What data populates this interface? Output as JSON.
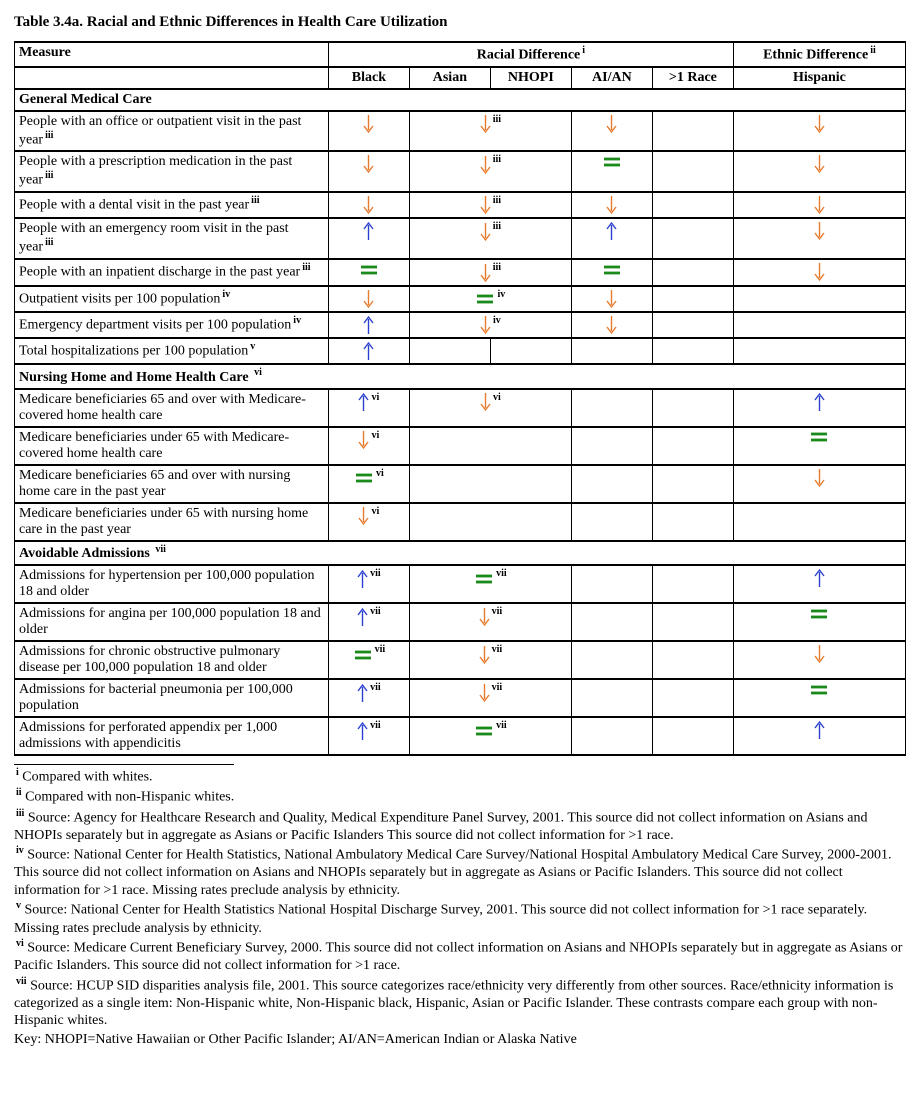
{
  "title": "Table 3.4a. Racial and Ethnic Differences in Health Care Utilization",
  "colors": {
    "down": "#e87a2c",
    "up": "#2a3fd0",
    "eq": "#1a8a1a",
    "border": "#000000",
    "bg": "#ffffff",
    "text": "#000000"
  },
  "typography": {
    "family": "Times New Roman",
    "body_pt": 11,
    "title_pt": 12
  },
  "header": {
    "measure": "Measure",
    "racial": "Racial Difference",
    "racial_sup": "i",
    "ethnic": "Ethnic Difference",
    "ethnic_sup": "ii",
    "sub": [
      "Black",
      "Asian",
      "NHOPI",
      "AI/AN",
      ">1 Race",
      "Hispanic"
    ]
  },
  "sections": [
    {
      "title": "General Medical Care",
      "rows": [
        {
          "m": "People with an office or outpatient visit in the past year",
          "msup": "iii",
          "c": [
            {
              "v": "down"
            },
            {
              "v": "down",
              "sup": "iii",
              "span": 2
            },
            null,
            {
              "v": "down"
            },
            {
              "v": ""
            },
            {
              "v": "down"
            }
          ]
        },
        {
          "m": "People with a prescription medication in the past year",
          "msup": "iii",
          "c": [
            {
              "v": "down"
            },
            {
              "v": "down",
              "sup": "iii",
              "span": 2
            },
            null,
            {
              "v": "eq"
            },
            {
              "v": ""
            },
            {
              "v": "down"
            }
          ]
        },
        {
          "m": "People with a dental visit in the past year",
          "msup": "iii",
          "c": [
            {
              "v": "down"
            },
            {
              "v": "down",
              "sup": "iii",
              "span": 2
            },
            null,
            {
              "v": "down"
            },
            {
              "v": ""
            },
            {
              "v": "down"
            }
          ]
        },
        {
          "m": "People with an emergency room visit in the past year",
          "msup": "iii",
          "c": [
            {
              "v": "up"
            },
            {
              "v": "down",
              "sup": "iii",
              "span": 2
            },
            null,
            {
              "v": "up"
            },
            {
              "v": ""
            },
            {
              "v": "down"
            }
          ]
        },
        {
          "m": "People with an inpatient discharge in the past year",
          "msup": "iii",
          "c": [
            {
              "v": "eq"
            },
            {
              "v": "down",
              "sup": "iii",
              "span": 2
            },
            null,
            {
              "v": "eq"
            },
            {
              "v": ""
            },
            {
              "v": "down"
            }
          ]
        },
        {
          "m": "Outpatient visits per 100 population",
          "msup": "iv",
          "c": [
            {
              "v": "down"
            },
            {
              "v": "eq",
              "sup": "iv",
              "span": 2
            },
            null,
            {
              "v": "down"
            },
            {
              "v": ""
            },
            {
              "v": ""
            }
          ]
        },
        {
          "m": "Emergency department visits per 100 population",
          "msup": "iv",
          "c": [
            {
              "v": "up"
            },
            {
              "v": "down",
              "sup": "iv",
              "span": 2
            },
            null,
            {
              "v": "down"
            },
            {
              "v": ""
            },
            {
              "v": ""
            }
          ]
        },
        {
          "m": "Total hospitalizations per 100 population",
          "msup": "v",
          "c": [
            {
              "v": "up"
            },
            {
              "v": ""
            },
            {
              "v": ""
            },
            {
              "v": ""
            },
            {
              "v": ""
            },
            {
              "v": ""
            }
          ]
        }
      ]
    },
    {
      "title": "Nursing Home and Home Health Care ",
      "tsup": "vi",
      "rows": [
        {
          "m": "Medicare beneficiaries 65 and over with Medicare-covered home health care",
          "c": [
            {
              "v": "up",
              "sup": "vi"
            },
            {
              "v": "down",
              "sup": "vi",
              "span": 2
            },
            null,
            {
              "v": ""
            },
            {
              "v": ""
            },
            {
              "v": "up"
            }
          ]
        },
        {
          "m": "Medicare beneficiaries under 65 with Medicare-covered home health care",
          "c": [
            {
              "v": "down",
              "sup": "vi"
            },
            {
              "v": "",
              "span": 2
            },
            null,
            {
              "v": ""
            },
            {
              "v": ""
            },
            {
              "v": "eq"
            }
          ]
        },
        {
          "m": "Medicare beneficiaries 65 and over with nursing home care in the past year",
          "c": [
            {
              "v": "eq",
              "sup": "vi"
            },
            {
              "v": "",
              "span": 2
            },
            null,
            {
              "v": ""
            },
            {
              "v": ""
            },
            {
              "v": "down"
            }
          ]
        },
        {
          "m": "Medicare beneficiaries under 65 with nursing home care in the past year",
          "c": [
            {
              "v": "down",
              "sup": "vi"
            },
            {
              "v": "",
              "span": 2
            },
            null,
            {
              "v": ""
            },
            {
              "v": ""
            },
            {
              "v": ""
            }
          ]
        }
      ]
    },
    {
      "title": "Avoidable Admissions ",
      "tsup": "vii",
      "rows": [
        {
          "m": "Admissions for hypertension per 100,000 population 18 and older",
          "c": [
            {
              "v": "up",
              "sup": "vii"
            },
            {
              "v": "eq",
              "sup": "vii",
              "span": 2
            },
            null,
            {
              "v": ""
            },
            {
              "v": ""
            },
            {
              "v": "up"
            }
          ]
        },
        {
          "m": "Admissions for angina per 100,000 population 18 and older",
          "c": [
            {
              "v": "up",
              "sup": "vii"
            },
            {
              "v": "down",
              "sup": "vii",
              "span": 2
            },
            null,
            {
              "v": ""
            },
            {
              "v": ""
            },
            {
              "v": "eq"
            }
          ]
        },
        {
          "m": "Admissions for chronic obstructive pulmonary disease per 100,000 population 18 and older",
          "c": [
            {
              "v": "eq",
              "sup": "vii"
            },
            {
              "v": "down",
              "sup": "vii",
              "span": 2
            },
            null,
            {
              "v": ""
            },
            {
              "v": ""
            },
            {
              "v": "down"
            }
          ]
        },
        {
          "m": "Admissions for bacterial pneumonia per 100,000 population",
          "c": [
            {
              "v": "up",
              "sup": "vii"
            },
            {
              "v": "down",
              "sup": "vii",
              "span": 2
            },
            null,
            {
              "v": ""
            },
            {
              "v": ""
            },
            {
              "v": "eq"
            }
          ]
        },
        {
          "m": "Admissions for perforated appendix per 1,000 admissions with appendicitis",
          "c": [
            {
              "v": "up",
              "sup": "vii"
            },
            {
              "v": "eq",
              "sup": "vii",
              "span": 2
            },
            null,
            {
              "v": ""
            },
            {
              "v": ""
            },
            {
              "v": "up"
            }
          ]
        }
      ]
    }
  ],
  "footnotes": [
    {
      "sup": "i",
      "t": " Compared with whites."
    },
    {
      "sup": "ii",
      "t": " Compared with non-Hispanic whites."
    },
    {
      "sup": "iii",
      "t": " Source: Agency for Healthcare Research and Quality, Medical Expenditure Panel Survey, 2001. This source did not collect information on Asians and NHOPIs separately but in aggregate as Asians or Pacific Islanders This source did not collect information for >1 race."
    },
    {
      "sup": "iv",
      "t": " Source: National Center for Health Statistics, National Ambulatory Medical Care Survey/National Hospital Ambulatory Medical Care Survey, 2000-2001.  This source did not collect information on Asians and NHOPIs separately but in aggregate as Asians or Pacific Islanders.  This source did not collect information for >1 race.  Missing rates preclude analysis by ethnicity."
    },
    {
      "sup": "v",
      "t": " Source: National Center for Health Statistics National Hospital Discharge Survey, 2001.  This source did not collect information for >1 race separately.  Missing rates preclude analysis by ethnicity."
    },
    {
      "sup": "vi",
      "t": " Source: Medicare Current Beneficiary Survey, 2000. This source did not collect information on Asians and NHOPIs separately but in aggregate as Asians or Pacific Islanders.  This source did not collect information for >1 race."
    },
    {
      "sup": "vii",
      "t": " Source: HCUP SID disparities analysis file, 2001.  This source categorizes race/ethnicity very differently from other sources.  Race/ethnicity information is categorized as a single item: Non-Hispanic white, Non-Hispanic black, Hispanic, Asian or Pacific Islander.  These contrasts compare each group with non-Hispanic whites."
    }
  ],
  "key": "Key: NHOPI=Native Hawaiian or Other Pacific Islander; AI/AN=American Indian or Alaska Native"
}
